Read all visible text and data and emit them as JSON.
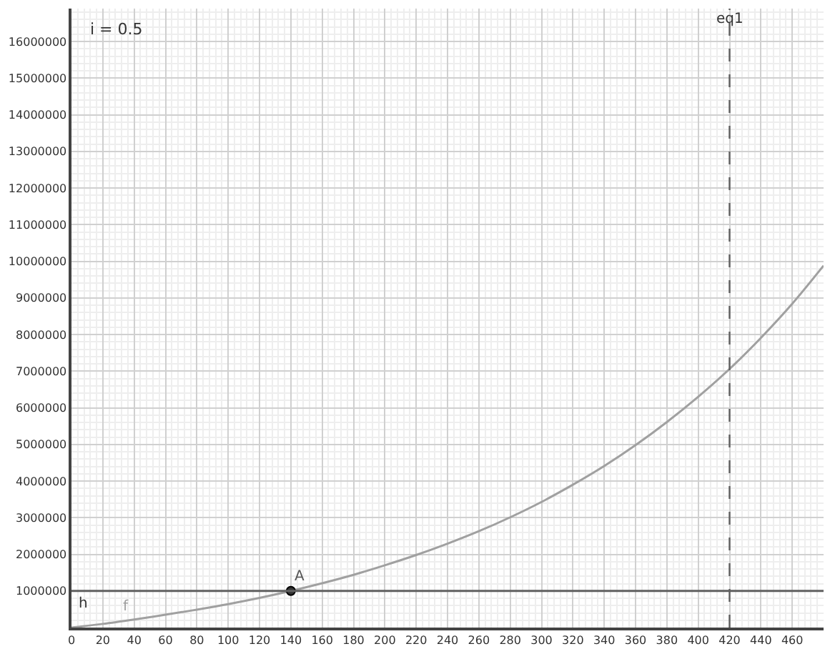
{
  "chart_data": {
    "type": "line",
    "x": [
      0,
      20,
      40,
      60,
      80,
      100,
      120,
      140,
      160,
      180,
      200,
      220,
      240,
      260,
      280,
      300,
      320,
      340,
      360,
      380,
      400,
      420,
      440,
      460,
      480
    ],
    "series": [
      {
        "name": "f",
        "color": "#a0a0a0",
        "values": [
          0,
          100000,
          220000,
          350000,
          490000,
          640000,
          810000,
          1000000,
          1210000,
          1440000,
          1700000,
          1980000,
          2290000,
          2630000,
          3010000,
          3430000,
          3900000,
          4410000,
          4980000,
          5610000,
          6300000,
          7060000,
          7910000,
          8840000,
          9880000
        ]
      },
      {
        "name": "A",
        "type": "scatter",
        "x": [
          140
        ],
        "color": "#333333",
        "values": [
          1000000
        ]
      }
    ],
    "ref_lines": [
      {
        "axis": "y",
        "value": 1000000,
        "label": "h",
        "color": "#606060",
        "line_style": "solid"
      },
      {
        "axis": "x",
        "value": 420,
        "label": "eq1",
        "color": "#606060",
        "line_style": "dashed"
      }
    ],
    "annotations": [
      "i = 0.5"
    ],
    "xlim": [
      0,
      480
    ],
    "ylim": [
      0,
      16900000
    ],
    "xticks": [
      0,
      20,
      40,
      60,
      80,
      100,
      120,
      140,
      160,
      180,
      200,
      220,
      240,
      260,
      280,
      300,
      320,
      340,
      360,
      380,
      400,
      420,
      440,
      460
    ],
    "yticks": [
      1000000,
      2000000,
      3000000,
      4000000,
      5000000,
      6000000,
      7000000,
      8000000,
      9000000,
      10000000,
      11000000,
      12000000,
      13000000,
      14000000,
      15000000,
      16000000
    ],
    "grid": true,
    "legend": false,
    "line_style": "solid"
  }
}
